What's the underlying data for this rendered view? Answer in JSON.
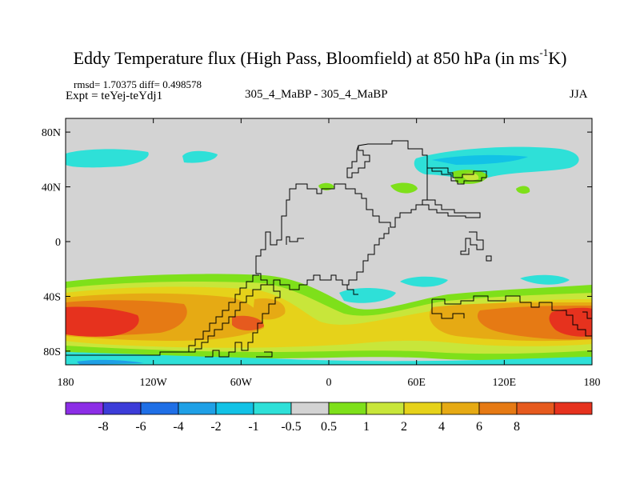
{
  "header": {
    "title_main": "Eddy Temperature flux (High Pass, Bloomfield) at 850 hPa (in ms",
    "title_sup": "-1",
    "title_end": "K)",
    "stats": "rmsd= 1.70375 diff= 0.498578",
    "expt": "Expt = teYej-teYdj1",
    "center_label": "305_4_MaBP - 305_4_MaBP",
    "season": "JJA"
  },
  "colors": {
    "neutral": "#d3d3d3",
    "levels": [
      "#8c2ee6",
      "#3c3cd8",
      "#1f6fe6",
      "#1fa0e6",
      "#12c2e6",
      "#2ee0d8",
      "#d3d3d3",
      "#7ee01a",
      "#c8e63a",
      "#e6d21a",
      "#e6aa14",
      "#e67a14",
      "#e65a1e",
      "#e6321e"
    ]
  },
  "chart_data": {
    "type": "heatmap",
    "title": "Eddy Temperature flux (High Pass, Bloomfield) at 850 hPa (in ms-1K)",
    "x_ticks": [
      "180",
      "120W",
      "60W",
      "0",
      "60E",
      "120E",
      "180"
    ],
    "y_ticks": [
      "80N",
      "40N",
      "0",
      "40S",
      "80S"
    ],
    "xlim": [
      -180,
      180
    ],
    "ylim": [
      -90,
      90
    ],
    "colorbar_levels": [
      "-8",
      "-6",
      "-4",
      "-2",
      "-1",
      "-0.5",
      "0.5",
      "1",
      "2",
      "4",
      "6",
      "8"
    ],
    "regions": [
      {
        "name": "nh-pacific-cyan",
        "value": -1.5,
        "lon": [
          -175,
          -130
        ],
        "lat": [
          45,
          55
        ]
      },
      {
        "name": "nh-pacific-cyan-2",
        "value": -1.5,
        "lon": [
          -135,
          -115
        ],
        "lat": [
          47,
          55
        ]
      },
      {
        "name": "nh-atlantic-cyan",
        "value": -1.5,
        "lon": [
          60,
          160
        ],
        "lat": [
          42,
          55
        ]
      },
      {
        "name": "nh-asia-green",
        "value": 0.7,
        "lon": [
          55,
          75
        ],
        "lat": [
          33,
          39
        ]
      },
      {
        "name": "sh-warm-band",
        "value": 3,
        "lon": [
          -180,
          180
        ],
        "lat": [
          -78,
          -40
        ]
      },
      {
        "name": "sh-core-pacific",
        "value": 8,
        "lon": [
          -180,
          -155
        ],
        "lat": [
          -70,
          -52
        ]
      },
      {
        "name": "sh-core-indian",
        "value": 6,
        "lon": [
          140,
          180
        ],
        "lat": [
          -68,
          -50
        ]
      },
      {
        "name": "sh-cyan-indian",
        "value": -1.5,
        "lon": [
          15,
          60
        ],
        "lat": [
          -44,
          -38
        ]
      },
      {
        "name": "sh-cyan-polar",
        "value": -1.5,
        "lon": [
          -180,
          180
        ],
        "lat": [
          -90,
          -80
        ]
      }
    ]
  }
}
